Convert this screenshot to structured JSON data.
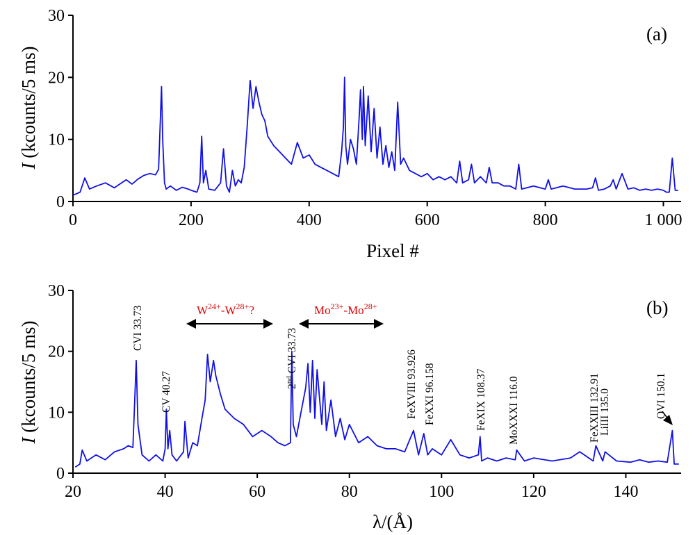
{
  "chart_data": [
    {
      "id": "a",
      "type": "line",
      "panel_label": "(a)",
      "xlabel": "Pixel #",
      "ylabel_italic": "I",
      "ylabel_rest": " (kcounts/5 ms)",
      "xlim": [
        0,
        1030
      ],
      "ylim": [
        0,
        30
      ],
      "xticks": [
        0,
        200,
        400,
        600,
        800,
        1000
      ],
      "xtick_labels": [
        "0",
        "200",
        "400",
        "600",
        "800",
        "1 000"
      ],
      "yticks": [
        0,
        10,
        20,
        30
      ],
      "ytick_labels": [
        "0",
        "10",
        "20",
        "30"
      ],
      "color": "#1010e6",
      "x": [
        0,
        12,
        20,
        28,
        40,
        55,
        70,
        90,
        100,
        110,
        120,
        130,
        140,
        145,
        150,
        152,
        155,
        158,
        165,
        175,
        185,
        195,
        200,
        210,
        215,
        218,
        221,
        225,
        230,
        240,
        250,
        255,
        260,
        265,
        270,
        275,
        280,
        285,
        290,
        295,
        300,
        305,
        310,
        315,
        320,
        325,
        330,
        340,
        350,
        360,
        370,
        380,
        390,
        400,
        410,
        420,
        430,
        440,
        450,
        455,
        458,
        460,
        462,
        465,
        470,
        475,
        480,
        485,
        487,
        490,
        492,
        495,
        500,
        505,
        510,
        515,
        520,
        525,
        530,
        535,
        540,
        545,
        550,
        555,
        560,
        570,
        580,
        590,
        600,
        610,
        620,
        630,
        640,
        650,
        655,
        660,
        670,
        675,
        680,
        690,
        700,
        705,
        710,
        720,
        730,
        740,
        750,
        755,
        760,
        780,
        800,
        805,
        810,
        830,
        850,
        870,
        880,
        885,
        890,
        900,
        910,
        915,
        920,
        930,
        940,
        950,
        960,
        970,
        980,
        990,
        1000,
        1005,
        1010,
        1015,
        1020,
        1025
      ],
      "y": [
        1.0,
        1.5,
        3.8,
        2.0,
        2.5,
        3.0,
        2.2,
        3.5,
        2.8,
        3.6,
        4.2,
        4.5,
        4.3,
        5.2,
        18.5,
        10.0,
        3.0,
        2.0,
        2.5,
        1.8,
        2.3,
        2.0,
        1.8,
        1.5,
        3.0,
        10.5,
        3.0,
        5.0,
        2.0,
        1.8,
        3.0,
        8.5,
        2.5,
        1.5,
        5.0,
        2.5,
        3.5,
        3.0,
        5.5,
        12.0,
        19.5,
        15.0,
        18.5,
        16.0,
        14.0,
        13.0,
        10.5,
        9.0,
        8.0,
        7.0,
        6.0,
        9.5,
        7.0,
        7.5,
        6.0,
        5.5,
        5.0,
        4.5,
        4.0,
        8.0,
        12.0,
        20.0,
        9.0,
        6.0,
        10.0,
        8.5,
        6.0,
        14.0,
        18.0,
        10.0,
        18.5,
        9.0,
        17.0,
        8.0,
        15.0,
        7.0,
        12.0,
        6.0,
        9.0,
        5.5,
        8.0,
        5.0,
        16.0,
        6.0,
        7.0,
        5.0,
        4.5,
        4.0,
        4.5,
        3.5,
        4.0,
        3.5,
        4.0,
        3.0,
        6.5,
        3.0,
        3.5,
        6.0,
        3.0,
        4.0,
        3.0,
        5.5,
        3.0,
        3.0,
        2.5,
        2.5,
        2.0,
        6.0,
        2.0,
        2.5,
        2.0,
        3.5,
        2.0,
        2.5,
        2.0,
        2.0,
        2.2,
        3.8,
        1.8,
        2.0,
        2.5,
        3.5,
        2.0,
        4.5,
        2.0,
        2.2,
        1.8,
        2.0,
        1.8,
        2.0,
        1.8,
        1.5,
        1.5,
        7.0,
        1.8,
        1.8
      ]
    },
    {
      "id": "b",
      "type": "line",
      "panel_label": "(b)",
      "xlabel": "λ/(Å)",
      "ylabel_italic": "I",
      "ylabel_rest": " (kcounts/5 ms)",
      "xlim": [
        20,
        152
      ],
      "ylim": [
        0,
        30
      ],
      "xticks": [
        20,
        40,
        60,
        80,
        100,
        120,
        140
      ],
      "xtick_labels": [
        "20",
        "40",
        "60",
        "80",
        "100",
        "120",
        "140"
      ],
      "yticks": [
        0,
        10,
        20,
        30
      ],
      "ytick_labels": [
        "0",
        "10",
        "20",
        "30"
      ],
      "color": "#1010e6",
      "x": [
        20.5,
        21.5,
        22.0,
        23.0,
        25.0,
        27.0,
        29.0,
        31.0,
        32.0,
        33.0,
        33.3,
        33.73,
        34.1,
        35.0,
        36.5,
        38.0,
        39.5,
        40.0,
        40.27,
        40.6,
        41.0,
        41.5,
        42.5,
        44.0,
        44.3,
        45.0,
        46.0,
        47.0,
        48.0,
        48.7,
        49.2,
        49.8,
        50.5,
        51.0,
        52.0,
        53.0,
        55.0,
        57.0,
        59.0,
        61.0,
        63.0,
        64.5,
        66.0,
        67.2,
        67.5,
        67.8,
        68.5,
        69.5,
        70.5,
        71.0,
        71.5,
        72.0,
        72.5,
        73.0,
        74.0,
        74.5,
        75.0,
        76.0,
        77.0,
        78.0,
        79.0,
        80.0,
        82.0,
        84.0,
        86.0,
        88.0,
        90.0,
        92.0,
        93.926,
        95.0,
        96.158,
        97.0,
        98.0,
        100.0,
        102.0,
        104.0,
        106.0,
        108.0,
        108.37,
        108.7,
        110.0,
        112.0,
        114.0,
        116.0,
        116.3,
        118.0,
        120.0,
        124.0,
        128.0,
        130.0,
        132.91,
        133.5,
        135.0,
        135.5,
        138.0,
        141.0,
        143.0,
        145.0,
        147.0,
        149.0,
        150.1,
        150.5,
        151.5
      ],
      "y": [
        1.0,
        1.5,
        3.8,
        2.0,
        3.0,
        2.2,
        3.5,
        4.0,
        4.5,
        4.2,
        10.0,
        18.5,
        8.0,
        3.0,
        2.0,
        3.0,
        2.0,
        4.0,
        10.5,
        4.0,
        7.0,
        3.0,
        2.0,
        3.5,
        8.5,
        2.5,
        5.0,
        4.5,
        9.0,
        12.0,
        19.5,
        15.0,
        18.5,
        16.0,
        13.0,
        10.5,
        9.0,
        8.0,
        6.0,
        7.0,
        6.0,
        5.0,
        4.5,
        5.0,
        20.0,
        8.0,
        6.0,
        10.0,
        14.0,
        18.0,
        10.0,
        18.5,
        9.0,
        17.0,
        8.0,
        15.0,
        7.0,
        12.0,
        6.0,
        9.0,
        5.5,
        8.0,
        5.0,
        6.0,
        4.5,
        4.0,
        4.0,
        3.5,
        7.0,
        3.0,
        6.5,
        3.0,
        4.0,
        3.0,
        5.5,
        3.0,
        2.5,
        3.0,
        6.0,
        2.0,
        2.5,
        2.0,
        2.5,
        2.2,
        3.8,
        2.0,
        2.5,
        2.0,
        2.5,
        3.5,
        2.0,
        4.5,
        2.0,
        3.5,
        2.0,
        1.8,
        2.2,
        1.8,
        2.0,
        1.8,
        7.0,
        1.5,
        1.5
      ]
    }
  ],
  "annotations_b": {
    "cvi": "CVI 33.73",
    "cv": "CV 40.27",
    "second_sup": "nd",
    "second_num": "2",
    "second_rest": " CVI 33.73",
    "fexviii": "FeXVIII 93.926",
    "fexxi": "FeXXI 96.158",
    "fexix": "FeXIX 108.37",
    "moxxxi": "MoXXXI 116.0",
    "fexxiii": "FeXXIII 132.91",
    "liiii": "LiIII 135.0",
    "ovi": "OVI 150.1",
    "w_base1": "W",
    "w_sup1": "24+",
    "w_dash": "-W",
    "w_sup2": "28+",
    "w_q": "?",
    "mo_base1": "Mo",
    "mo_sup1": "23+",
    "mo_dash": "-Mo",
    "mo_sup2": "28+"
  },
  "colors": {
    "spectrum": "#1010e6",
    "annotation_red": "#e00000"
  }
}
